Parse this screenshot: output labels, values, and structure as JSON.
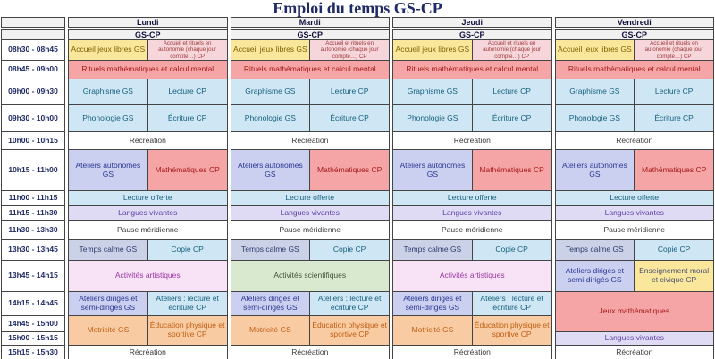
{
  "title": "Emploi du temps GS-CP",
  "group_label": "GS-CP",
  "days": [
    "Lundi",
    "Mardi",
    "Jeudi",
    "Vendredi"
  ],
  "time_slots": [
    "08h30 - 08h45",
    "08h45 - 09h00",
    "09h00 - 09h30",
    "09h30 - 10h00",
    "10h00 - 10h15",
    "10h15 - 11h00",
    "11h00 - 11h15",
    "11h15 - 11h30",
    "11h30 - 13h30",
    "13h30 - 13h45",
    "13h45 - 14h15",
    "14h15 - 14h45",
    "14h45 - 15h00",
    "15h00 - 15h15",
    "15h15 - 15h30"
  ],
  "palette": {
    "yellow": {
      "bg": "#FBE79B",
      "fg": "#7F6000"
    },
    "accueil_cp": {
      "bg": "#F6D6DA",
      "fg": "#9C3A3A"
    },
    "red": {
      "bg": "#F5A5A5",
      "fg": "#A81A1A"
    },
    "blue": {
      "bg": "#CFE7F4",
      "fg": "#17607F"
    },
    "white": {
      "bg": "#FFFFFF",
      "fg": "#3A3A3A"
    },
    "periwinkle": {
      "bg": "#CBD0F1",
      "fg": "#2A3890"
    },
    "lavender": {
      "bg": "#E0DBF4",
      "fg": "#5D40A8"
    },
    "grayblue": {
      "bg": "#CBD2E7",
      "fg": "#2D3B6E"
    },
    "pink_art": {
      "bg": "#F8E2F6",
      "fg": "#9A38A2"
    },
    "green": {
      "bg": "#D8E9D0",
      "fg": "#445238"
    },
    "orange": {
      "bg": "#F9CBA2",
      "fg": "#BF5E12"
    },
    "emc_yellow": {
      "bg": "#FBE79B",
      "fg": "#475373"
    },
    "header": {
      "bg": "#F1F1F1",
      "fg": "#10103C"
    },
    "time": {
      "bg": "#FFFFFF",
      "fg": "#1F2A66"
    },
    "title_fg": "#1F2A66",
    "border": "#444444"
  },
  "rows": [
    {
      "time": "08h30 - 08h45",
      "days": [
        [
          {
            "text": "Accueil jeux libres GS",
            "color": "yellow",
            "col": 1
          },
          {
            "text": "Accueil et rituels en autonomie (chaque jour compte…) CP",
            "color": "accueil_cp",
            "col": 2,
            "small": true
          }
        ],
        [
          {
            "text": "Accueil jeux libres GS",
            "color": "yellow",
            "col": 1
          },
          {
            "text": "Accueil et rituels en autonomie (chaque jour compte…) CP",
            "color": "accueil_cp",
            "col": 2,
            "small": true
          }
        ],
        [
          {
            "text": "Accueil jeux libres GS",
            "color": "yellow",
            "col": 1
          },
          {
            "text": "Accueil et rituels en autonomie (chaque jour compte…) CP",
            "color": "accueil_cp",
            "col": 2,
            "small": true
          }
        ],
        [
          {
            "text": "Accueil jeux libres GS",
            "color": "yellow",
            "col": 1
          },
          {
            "text": "Accueil et rituels en autonomie (chaque jour compte…) CP",
            "color": "accueil_cp",
            "col": 2,
            "small": true
          }
        ]
      ]
    },
    {
      "time": "08h45 - 09h00",
      "days": [
        [
          {
            "text": "Rituels mathématiques et calcul mental",
            "color": "red",
            "full": true
          }
        ],
        [
          {
            "text": "Rituels mathématiques et calcul mental",
            "color": "red",
            "full": true
          }
        ],
        [
          {
            "text": "Rituels mathématiques et calcul mental",
            "color": "red",
            "full": true
          }
        ],
        [
          {
            "text": "Rituels mathématiques et calcul mental",
            "color": "red",
            "full": true
          }
        ]
      ]
    },
    {
      "time": "09h00 - 09h30",
      "days": [
        [
          {
            "text": "Graphisme GS",
            "color": "blue",
            "col": 1
          },
          {
            "text": "Lecture CP",
            "color": "blue",
            "col": 2
          }
        ],
        [
          {
            "text": "Graphisme GS",
            "color": "blue",
            "col": 1
          },
          {
            "text": "Lecture CP",
            "color": "blue",
            "col": 2
          }
        ],
        [
          {
            "text": "Graphisme GS",
            "color": "blue",
            "col": 1
          },
          {
            "text": "Lecture CP",
            "color": "blue",
            "col": 2
          }
        ],
        [
          {
            "text": "Graphisme GS",
            "color": "blue",
            "col": 1
          },
          {
            "text": "Lecture CP",
            "color": "blue",
            "col": 2
          }
        ]
      ]
    },
    {
      "time": "09h30 - 10h00",
      "days": [
        [
          {
            "text": "Phonologie GS",
            "color": "blue",
            "col": 1
          },
          {
            "text": "Écriture CP",
            "color": "blue",
            "col": 2
          }
        ],
        [
          {
            "text": "Phonologie GS",
            "color": "blue",
            "col": 1
          },
          {
            "text": "Écriture CP",
            "color": "blue",
            "col": 2
          }
        ],
        [
          {
            "text": "Phonologie GS",
            "color": "blue",
            "col": 1
          },
          {
            "text": "Écriture CP",
            "color": "blue",
            "col": 2
          }
        ],
        [
          {
            "text": "Phonologie GS",
            "color": "blue",
            "col": 1
          },
          {
            "text": "Écriture CP",
            "color": "blue",
            "col": 2
          }
        ]
      ]
    },
    {
      "time": "10h00 - 10h15",
      "days": [
        [
          {
            "text": "Récréation",
            "color": "white",
            "full": true
          }
        ],
        [
          {
            "text": "Récréation",
            "color": "white",
            "full": true
          }
        ],
        [
          {
            "text": "Récréation",
            "color": "white",
            "full": true
          }
        ],
        [
          {
            "text": "Récréation",
            "color": "white",
            "full": true
          }
        ]
      ]
    },
    {
      "time": "10h15 - 11h00",
      "days": [
        [
          {
            "text": "Ateliers autonomes GS",
            "color": "periwinkle",
            "col": 1
          },
          {
            "text": "Mathématiques CP",
            "color": "red",
            "col": 2
          }
        ],
        [
          {
            "text": "Ateliers autonomes GS",
            "color": "periwinkle",
            "col": 1
          },
          {
            "text": "Mathématiques CP",
            "color": "red",
            "col": 2
          }
        ],
        [
          {
            "text": "Ateliers autonomes GS",
            "color": "periwinkle",
            "col": 1
          },
          {
            "text": "Mathématiques CP",
            "color": "red",
            "col": 2
          }
        ],
        [
          {
            "text": "Ateliers autonomes GS",
            "color": "periwinkle",
            "col": 1
          },
          {
            "text": "Mathématiques CP",
            "color": "red",
            "col": 2
          }
        ]
      ]
    },
    {
      "time": "11h00 - 11h15",
      "days": [
        [
          {
            "text": "Lecture offerte",
            "color": "blue",
            "full": true
          }
        ],
        [
          {
            "text": "Lecture offerte",
            "color": "blue",
            "full": true
          }
        ],
        [
          {
            "text": "Lecture offerte",
            "color": "blue",
            "full": true
          }
        ],
        [
          {
            "text": "Lecture offerte",
            "color": "blue",
            "full": true
          }
        ]
      ]
    },
    {
      "time": "11h15 - 11h30",
      "days": [
        [
          {
            "text": "Langues vivantes",
            "color": "lavender",
            "full": true
          }
        ],
        [
          {
            "text": "Langues vivantes",
            "color": "lavender",
            "full": true
          }
        ],
        [
          {
            "text": "Langues vivantes",
            "color": "lavender",
            "full": true
          }
        ],
        [
          {
            "text": "Langues vivantes",
            "color": "lavender",
            "full": true
          }
        ]
      ]
    },
    {
      "time": "11h30 - 13h30",
      "days": [
        [
          {
            "text": "Pause méridienne",
            "color": "white",
            "full": true
          }
        ],
        [
          {
            "text": "Pause méridienne",
            "color": "white",
            "full": true
          }
        ],
        [
          {
            "text": "Pause méridienne",
            "color": "white",
            "full": true
          }
        ],
        [
          {
            "text": "Pause méridienne",
            "color": "white",
            "full": true
          }
        ]
      ]
    },
    {
      "time": "13h30 - 13h45",
      "days": [
        [
          {
            "text": "Temps calme GS",
            "color": "grayblue",
            "col": 1
          },
          {
            "text": "Copie CP",
            "color": "blue",
            "col": 2
          }
        ],
        [
          {
            "text": "Temps calme GS",
            "color": "grayblue",
            "col": 1
          },
          {
            "text": "Copie CP",
            "color": "blue",
            "col": 2
          }
        ],
        [
          {
            "text": "Temps calme GS",
            "color": "grayblue",
            "col": 1
          },
          {
            "text": "Copie CP",
            "color": "blue",
            "col": 2
          }
        ],
        [
          {
            "text": "Temps calme GS",
            "color": "grayblue",
            "col": 1
          },
          {
            "text": "Copie CP",
            "color": "blue",
            "col": 2
          }
        ]
      ]
    },
    {
      "time": "13h45 - 14h15",
      "days": [
        [
          {
            "text": "Activités artistiques",
            "color": "pink_art",
            "full": true
          }
        ],
        [
          {
            "text": "Activités scientifiques",
            "color": "green",
            "full": true
          }
        ],
        [
          {
            "text": "Activités artistiques",
            "color": "pink_art",
            "full": true
          }
        ],
        [
          {
            "text": "Ateliers dirigés et semi-dirigés GS",
            "color": "periwinkle",
            "col": 1
          },
          {
            "text": "Enseignement moral et civique CP",
            "color": "emc_yellow",
            "col": 2
          }
        ]
      ]
    },
    {
      "time": "14h15 - 14h45",
      "days": [
        [
          {
            "text": "Ateliers dirigés et semi-dirigés GS",
            "color": "periwinkle",
            "col": 1
          },
          {
            "text": "Ateliers : lecture et écriture CP",
            "color": "blue",
            "col": 2
          }
        ],
        [
          {
            "text": "Ateliers dirigés et semi-dirigés GS",
            "color": "periwinkle",
            "col": 1
          },
          {
            "text": "Ateliers : lecture et écriture CP",
            "color": "blue",
            "col": 2
          }
        ],
        [
          {
            "text": "Ateliers dirigés et semi-dirigés GS",
            "color": "periwinkle",
            "col": 1
          },
          {
            "text": "Ateliers : lecture et écriture CP",
            "color": "blue",
            "col": 2
          }
        ],
        [
          {
            "text": "Jeux mathématiques",
            "color": "red",
            "full": true,
            "rowspan": 2
          }
        ]
      ]
    },
    {
      "time": "14h45 - 15h00",
      "days": [
        [
          {
            "text": "Motricité GS",
            "color": "orange",
            "col": 1,
            "rowspan": 2
          },
          {
            "text": "Éducation physique et sportive CP",
            "color": "orange",
            "col": 2,
            "rowspan": 2
          }
        ],
        [
          {
            "text": "Motricité GS",
            "color": "orange",
            "col": 1,
            "rowspan": 2
          },
          {
            "text": "Éducation physique et sportive CP",
            "color": "orange",
            "col": 2,
            "rowspan": 2
          }
        ],
        [
          {
            "text": "Motricité GS",
            "color": "orange",
            "col": 1,
            "rowspan": 2
          },
          {
            "text": "Éducation physique et sportive CP",
            "color": "orange",
            "col": 2,
            "rowspan": 2
          }
        ],
        []
      ]
    },
    {
      "time": "15h00 - 15h15",
      "days": [
        [],
        [],
        [],
        [
          {
            "text": "Langues vivantes",
            "color": "lavender",
            "full": true
          }
        ]
      ]
    },
    {
      "time": "15h15 - 15h30",
      "days": [
        [
          {
            "text": "Récréation",
            "color": "white",
            "full": true
          }
        ],
        [
          {
            "text": "Récréation",
            "color": "white",
            "full": true
          }
        ],
        [
          {
            "text": "Récréation",
            "color": "white",
            "full": true
          }
        ],
        [
          {
            "text": "Récréation",
            "color": "white",
            "full": true
          }
        ]
      ]
    }
  ]
}
